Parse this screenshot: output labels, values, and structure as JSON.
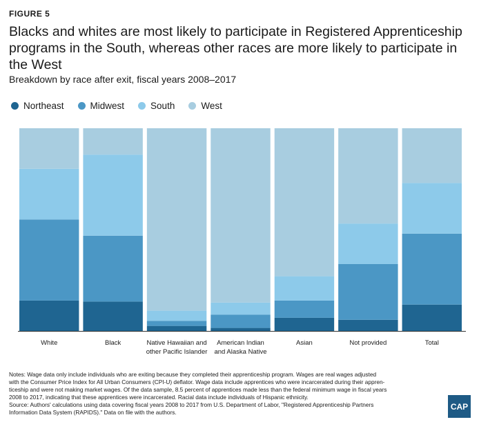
{
  "figure_label": "FIGURE 5",
  "title": "Blacks and whites are most likely to participate in Registered Apprenticeship programs in the South, whereas other races are more likely to participate in the West",
  "subtitle": "Breakdown by race after exit, fiscal years 2008–2017",
  "notes": [
    "Notes: Wage data only include individuals who are exiting because they completed their apprenticeship program. Wages are real wages adjusted",
    "with the Consumer Price Index for All Urban Consumers (CPI-U) deflator. Wage data include apprentices who were incarcerated during their appren-",
    "ticeship and were not making market wages. Of the data sample, 8.5 percent of apprentices made less than the federal minimum wage in fiscal years",
    "2008 to 2017, indicating that these apprentices were incarcerated. Racial data include individuals of Hispanic ethnicity.",
    "Source: Authors' calculations using data covering fiscal years 2008 to 2017 from U.S. Department of Labor, \"Registered Apprenticeship Partners",
    "Information Data System (RAPIDS).\" Data on file with the authors."
  ],
  "logo_text": "CAP",
  "chart_data": {
    "type": "bar",
    "stacked": "100%",
    "categories": [
      [
        "White"
      ],
      [
        "Black"
      ],
      [
        "Native Hawaiian and",
        "other Pacific Islander"
      ],
      [
        "American Indian",
        "and Alaska Native"
      ],
      [
        "Asian"
      ],
      [
        "Not provided"
      ],
      [
        "Total"
      ]
    ],
    "series": [
      {
        "name": "Northeast",
        "color": "#1f6591",
        "values": [
          15,
          14.5,
          2.5,
          1.5,
          6.5,
          5.5,
          13
        ]
      },
      {
        "name": "Midwest",
        "color": "#4b97c5",
        "values": [
          40,
          32.5,
          2.5,
          6.5,
          8.5,
          27.5,
          35
        ]
      },
      {
        "name": "South",
        "color": "#8dcaea",
        "values": [
          25,
          40,
          5,
          6,
          12,
          20,
          25
        ]
      },
      {
        "name": "West",
        "color": "#a8cde0",
        "values": [
          20,
          13,
          90,
          86,
          73,
          47,
          27
        ]
      }
    ],
    "ylim": [
      0,
      100
    ],
    "legend_position": "top-left",
    "grid": false
  }
}
